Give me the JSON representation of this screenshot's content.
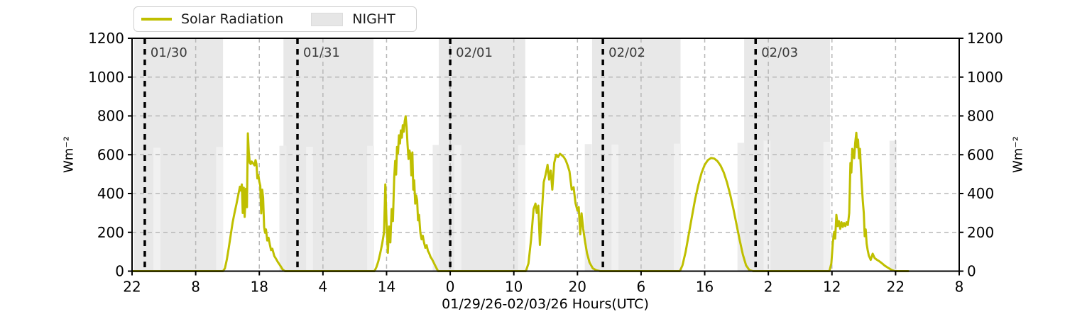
{
  "legend": {
    "items": [
      {
        "type": "line",
        "label": "Solar Radiation",
        "color": "#bfbf00"
      },
      {
        "type": "patch",
        "label": "NIGHT",
        "color": "#e6e6e6"
      }
    ]
  },
  "chart_data": {
    "type": "line",
    "title": "",
    "xlabel": "01/29/26-02/03/26  Hours(UTC)",
    "ylabel": "Wm⁻²",
    "x_unit": "hours since 01/29/26 22:00 UTC",
    "xlim": [
      0,
      130
    ],
    "ylim": [
      0,
      1200
    ],
    "grid": true,
    "legend_position": "top-left, above axes",
    "xticks": {
      "hours": [
        0,
        10,
        20,
        30,
        40,
        50,
        60,
        70,
        80,
        90,
        100,
        110,
        120,
        130
      ],
      "labels": [
        "22",
        "8",
        "18",
        "4",
        "14",
        "0",
        "10",
        "20",
        "6",
        "16",
        "2",
        "12",
        "22",
        "8"
      ]
    },
    "yticks": [
      0,
      200,
      400,
      600,
      800,
      1000,
      1200
    ],
    "colors": {
      "line": "#bfbf00",
      "night": "#e8e8e8",
      "bar_inner": "#f1f1f1",
      "bar_edge": "#ececec",
      "grid": "#b8b8b8",
      "spine": "#000000",
      "day_line": "#000000",
      "date_label": "#3a3a3a",
      "tick_label": "#000000"
    },
    "day_lines": [
      {
        "h": 2,
        "label": "01/30"
      },
      {
        "h": 26,
        "label": "01/31"
      },
      {
        "h": 50,
        "label": "02/01"
      },
      {
        "h": 74,
        "label": "02/02"
      },
      {
        "h": 98,
        "label": "02/03"
      }
    ],
    "night_spans": [
      [
        0.3,
        14.3
      ],
      [
        23.8,
        37.95
      ],
      [
        48.2,
        61.8
      ],
      [
        72.3,
        86.2
      ],
      [
        96.2,
        109.7
      ]
    ],
    "twilight_bars": [
      {
        "h": 3.9,
        "top": 636,
        "shade": "inner"
      },
      {
        "h": 13.75,
        "top": 640,
        "shade": "inner"
      },
      {
        "h": 23.7,
        "top": 646,
        "shade": "edge"
      },
      {
        "h": 27.9,
        "top": 641,
        "shade": "inner"
      },
      {
        "h": 37.5,
        "top": 646,
        "shade": "inner"
      },
      {
        "h": 47.8,
        "top": 650,
        "shade": "edge"
      },
      {
        "h": 51.2,
        "top": 650,
        "shade": "inner"
      },
      {
        "h": 61.2,
        "top": 650,
        "shade": "inner"
      },
      {
        "h": 71.7,
        "top": 655,
        "shade": "edge"
      },
      {
        "h": 75.9,
        "top": 653,
        "shade": "inner"
      },
      {
        "h": 85.7,
        "top": 657,
        "shade": "inner"
      },
      {
        "h": 95.7,
        "top": 661,
        "shade": "edge"
      },
      {
        "h": 99.8,
        "top": 673,
        "shade": "inner"
      },
      {
        "h": 109.2,
        "top": 666,
        "shade": "inner"
      },
      {
        "h": 119.6,
        "top": 672,
        "shade": "edge"
      }
    ],
    "series": [
      {
        "name": "Solar Radiation",
        "color": "#bfbf00",
        "points": [
          [
            0,
            0
          ],
          [
            14.3,
            0
          ],
          [
            14.6,
            15
          ],
          [
            14.9,
            60
          ],
          [
            15.2,
            120
          ],
          [
            15.5,
            185
          ],
          [
            15.8,
            250
          ],
          [
            16.1,
            300
          ],
          [
            16.4,
            345
          ],
          [
            16.7,
            395
          ],
          [
            16.95,
            435
          ],
          [
            17.1,
            415
          ],
          [
            17.25,
            447
          ],
          [
            17.4,
            300
          ],
          [
            17.55,
            430
          ],
          [
            17.7,
            280
          ],
          [
            17.9,
            425
          ],
          [
            18.05,
            330
          ],
          [
            18.2,
            710
          ],
          [
            18.35,
            615
          ],
          [
            18.5,
            558
          ],
          [
            18.65,
            552
          ],
          [
            18.8,
            565
          ],
          [
            18.95,
            558
          ],
          [
            19.1,
            552
          ],
          [
            19.25,
            545
          ],
          [
            19.4,
            572
          ],
          [
            19.55,
            552
          ],
          [
            19.7,
            478
          ],
          [
            19.85,
            495
          ],
          [
            20.0,
            462
          ],
          [
            20.15,
            440
          ],
          [
            20.3,
            298
          ],
          [
            20.45,
            420
          ],
          [
            20.6,
            378
          ],
          [
            20.75,
            228
          ],
          [
            20.9,
            198
          ],
          [
            21.05,
            215
          ],
          [
            21.25,
            158
          ],
          [
            21.45,
            172
          ],
          [
            21.65,
            138
          ],
          [
            21.85,
            108
          ],
          [
            22.05,
            115
          ],
          [
            22.35,
            78
          ],
          [
            22.65,
            62
          ],
          [
            22.95,
            45
          ],
          [
            23.3,
            28
          ],
          [
            23.65,
            10
          ],
          [
            24.0,
            0
          ],
          [
            38.1,
            0
          ],
          [
            38.4,
            20
          ],
          [
            38.7,
            50
          ],
          [
            39.0,
            92
          ],
          [
            39.3,
            140
          ],
          [
            39.6,
            200
          ],
          [
            39.8,
            447
          ],
          [
            40.0,
            240
          ],
          [
            40.2,
            95
          ],
          [
            40.4,
            230
          ],
          [
            40.6,
            148
          ],
          [
            40.8,
            320
          ],
          [
            41.0,
            258
          ],
          [
            41.2,
            480
          ],
          [
            41.35,
            568
          ],
          [
            41.5,
            498
          ],
          [
            41.65,
            640
          ],
          [
            41.8,
            608
          ],
          [
            41.95,
            700
          ],
          [
            42.1,
            658
          ],
          [
            42.25,
            725
          ],
          [
            42.4,
            688
          ],
          [
            42.55,
            752
          ],
          [
            42.7,
            718
          ],
          [
            42.85,
            772
          ],
          [
            43.0,
            798
          ],
          [
            43.15,
            742
          ],
          [
            43.3,
            652
          ],
          [
            43.45,
            578
          ],
          [
            43.6,
            622
          ],
          [
            43.75,
            600
          ],
          [
            43.9,
            494
          ],
          [
            44.05,
            612
          ],
          [
            44.2,
            420
          ],
          [
            44.35,
            468
          ],
          [
            44.5,
            348
          ],
          [
            44.65,
            390
          ],
          [
            44.8,
            366
          ],
          [
            44.95,
            262
          ],
          [
            45.1,
            290
          ],
          [
            45.3,
            200
          ],
          [
            45.5,
            164
          ],
          [
            45.7,
            182
          ],
          [
            45.9,
            146
          ],
          [
            46.1,
            120
          ],
          [
            46.3,
            134
          ],
          [
            46.5,
            105
          ],
          [
            46.7,
            92
          ],
          [
            46.9,
            74
          ],
          [
            47.2,
            58
          ],
          [
            47.5,
            38
          ],
          [
            47.8,
            18
          ],
          [
            48.1,
            0
          ],
          [
            61.9,
            0
          ],
          [
            62.3,
            40
          ],
          [
            62.7,
            160
          ],
          [
            63.1,
            320
          ],
          [
            63.4,
            348
          ],
          [
            63.6,
            300
          ],
          [
            63.85,
            338
          ],
          [
            64.1,
            135
          ],
          [
            64.4,
            298
          ],
          [
            64.7,
            458
          ],
          [
            65.0,
            498
          ],
          [
            65.3,
            548
          ],
          [
            65.55,
            472
          ],
          [
            65.8,
            518
          ],
          [
            66.05,
            420
          ],
          [
            66.35,
            558
          ],
          [
            66.65,
            600
          ],
          [
            66.95,
            588
          ],
          [
            67.25,
            605
          ],
          [
            67.55,
            597
          ],
          [
            67.85,
            588
          ],
          [
            68.15,
            572
          ],
          [
            68.45,
            546
          ],
          [
            68.75,
            514
          ],
          [
            69.1,
            420
          ],
          [
            69.4,
            432
          ],
          [
            69.7,
            350
          ],
          [
            70.0,
            312
          ],
          [
            70.2,
            330
          ],
          [
            70.45,
            190
          ],
          [
            70.65,
            298
          ],
          [
            70.9,
            218
          ],
          [
            71.2,
            150
          ],
          [
            71.5,
            92
          ],
          [
            71.9,
            45
          ],
          [
            72.4,
            15
          ],
          [
            73.0,
            4
          ],
          [
            73.6,
            0
          ],
          [
            86.1,
            0
          ],
          [
            86.5,
            30
          ],
          [
            87.0,
            100
          ],
          [
            87.5,
            190
          ],
          [
            88.0,
            282
          ],
          [
            88.5,
            372
          ],
          [
            89.0,
            445
          ],
          [
            89.5,
            506
          ],
          [
            90.0,
            548
          ],
          [
            90.5,
            572
          ],
          [
            91.0,
            583
          ],
          [
            91.5,
            580
          ],
          [
            92.0,
            567
          ],
          [
            92.5,
            544
          ],
          [
            93.0,
            508
          ],
          [
            93.5,
            458
          ],
          [
            94.0,
            395
          ],
          [
            94.5,
            322
          ],
          [
            95.0,
            242
          ],
          [
            95.5,
            160
          ],
          [
            96.0,
            85
          ],
          [
            96.5,
            30
          ],
          [
            97.0,
            6
          ],
          [
            97.6,
            0
          ],
          [
            109.6,
            0
          ],
          [
            109.9,
            40
          ],
          [
            110.15,
            150
          ],
          [
            110.35,
            202
          ],
          [
            110.5,
            168
          ],
          [
            110.7,
            290
          ],
          [
            110.9,
            232
          ],
          [
            111.1,
            258
          ],
          [
            111.3,
            218
          ],
          [
            111.5,
            252
          ],
          [
            111.7,
            228
          ],
          [
            111.9,
            248
          ],
          [
            112.1,
            232
          ],
          [
            112.3,
            252
          ],
          [
            112.5,
            238
          ],
          [
            112.72,
            300
          ],
          [
            112.9,
            557
          ],
          [
            113.05,
            508
          ],
          [
            113.2,
            630
          ],
          [
            113.35,
            618
          ],
          [
            113.5,
            582
          ],
          [
            113.65,
            660
          ],
          [
            113.83,
            713
          ],
          [
            113.95,
            638
          ],
          [
            114.1,
            678
          ],
          [
            114.25,
            582
          ],
          [
            114.4,
            630
          ],
          [
            114.55,
            530
          ],
          [
            114.7,
            438
          ],
          [
            114.85,
            362
          ],
          [
            115.0,
            300
          ],
          [
            115.15,
            180
          ],
          [
            115.3,
            215
          ],
          [
            115.45,
            142
          ],
          [
            115.6,
            110
          ],
          [
            115.8,
            80
          ],
          [
            116.1,
            58
          ],
          [
            116.4,
            90
          ],
          [
            116.7,
            68
          ],
          [
            117.0,
            60
          ],
          [
            117.4,
            52
          ],
          [
            117.8,
            42
          ],
          [
            118.3,
            28
          ],
          [
            118.8,
            18
          ],
          [
            119.4,
            6
          ],
          [
            119.9,
            0
          ],
          [
            122,
            0
          ]
        ]
      }
    ]
  }
}
